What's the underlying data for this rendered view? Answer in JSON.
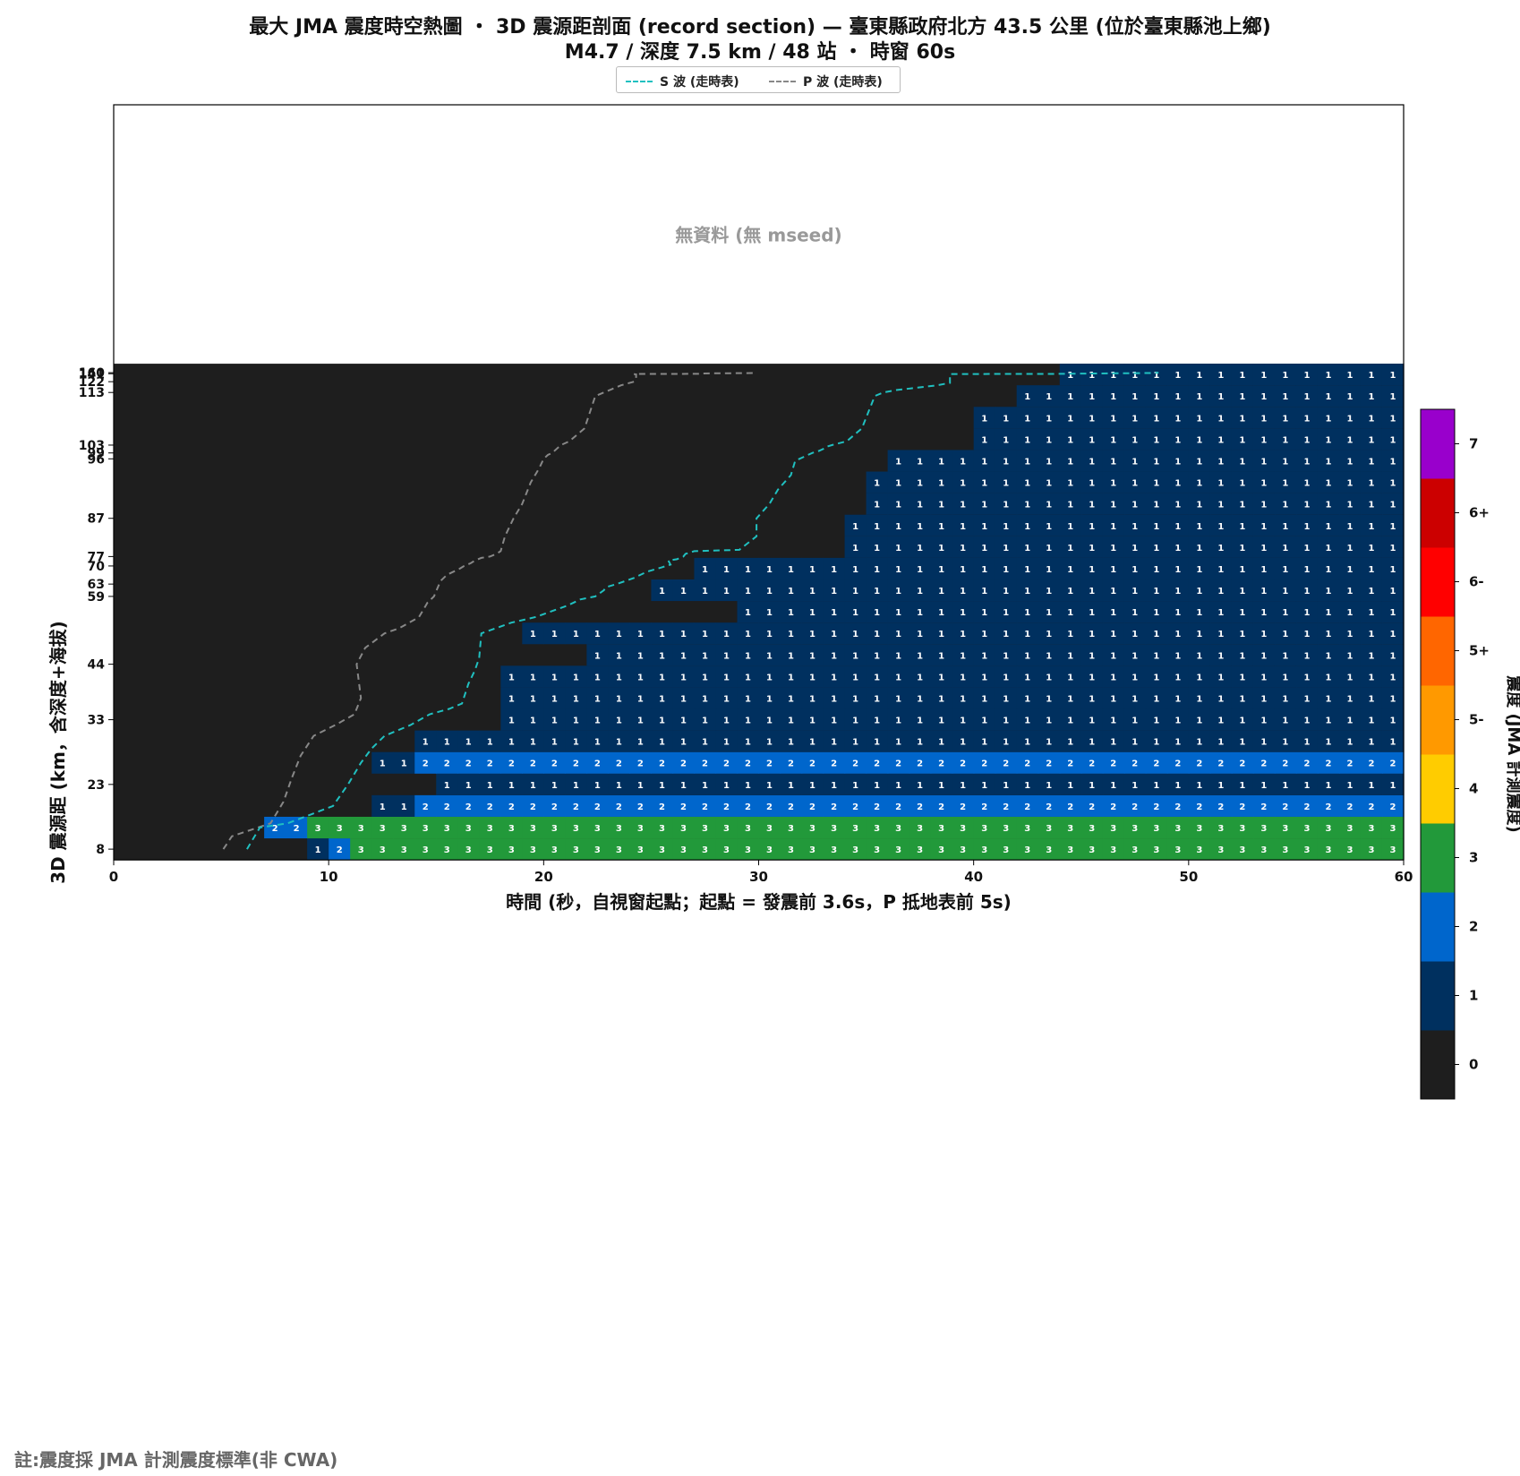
{
  "title_line1": "最大 JMA 震度時空熱圖 ・ 3D 震源距剖面 (record section) — 臺東縣政府北方  43.5  公里 (位於臺東縣池上鄉)",
  "title_line2": "M4.7 / 深度 7.5 km / 48 站 ・ 時窗 60s",
  "legend": {
    "s_wave": "S 波 (走時表)",
    "p_wave": "P 波 (走時表)",
    "s_color": "#20c0c0",
    "p_color": "#888888"
  },
  "no_data_text": "無資料 (無 mseed)",
  "note": "註:震度採 JMA 計測震度標準(非 CWA)",
  "colors": {
    "background": "#1e1e1e",
    "intensity": {
      "0": "#1e1e1e",
      "1": "#00305f",
      "2": "#0066cc",
      "3": "#22993a",
      "4": "#ffcc00",
      "5-": "#ff9900",
      "5+": "#ff6600",
      "6-": "#ff0000",
      "6+": "#cc0000",
      "7": "#9900cc"
    }
  },
  "chart_data": {
    "type": "heatmap",
    "xlabel": "時間 (秒，自視窗起點；起點 = 發震前 3.6s，P 抵地表前 5s)",
    "ylabel": "3D 震源距 (km，含深度+海拔)",
    "xlim": [
      0,
      60
    ],
    "x_ticks": [
      "0",
      "10",
      "20",
      "30",
      "40",
      "50",
      "60"
    ],
    "y_tick_labels": [
      "8",
      "23",
      "33",
      "44",
      "59",
      "63",
      "70",
      "77",
      "87",
      "96",
      "99",
      "103",
      "113",
      "122",
      "141",
      "160"
    ],
    "colorbar": {
      "label": "震度 (JMA 計測震度)",
      "levels": [
        "0",
        "1",
        "2",
        "3",
        "4",
        "5-",
        "5+",
        "6-",
        "6+",
        "7"
      ]
    },
    "rows": [
      {
        "distance": 8,
        "cells": [
          {
            "start": 9,
            "value": 1
          },
          {
            "start": 10,
            "value": 2
          },
          {
            "start": 11,
            "value": 3
          }
        ]
      },
      {
        "distance": 13,
        "cells": [
          {
            "start": 7,
            "value": 2
          },
          {
            "start": 9,
            "value": 3
          }
        ]
      },
      {
        "distance": 18,
        "cells": [
          {
            "start": 12,
            "value": 1
          },
          {
            "start": 14,
            "value": 2
          }
        ]
      },
      {
        "distance": 23,
        "cells": [
          {
            "start": 15,
            "value": 1
          }
        ]
      },
      {
        "distance": 26,
        "cells": [
          {
            "start": 12,
            "value": 1
          },
          {
            "start": 14,
            "value": 2
          }
        ]
      },
      {
        "distance": 29,
        "cells": [
          {
            "start": 14,
            "value": 1
          }
        ]
      },
      {
        "distance": 33,
        "cells": [
          {
            "start": 18,
            "value": 1
          }
        ]
      },
      {
        "distance": 37,
        "cells": [
          {
            "start": 18,
            "value": 1
          }
        ]
      },
      {
        "distance": 40,
        "cells": [
          {
            "start": 18,
            "value": 1
          }
        ]
      },
      {
        "distance": 47,
        "cells": [
          {
            "start": 22,
            "value": 1
          }
        ]
      },
      {
        "distance": 50,
        "cells": [
          {
            "start": 19,
            "value": 1
          }
        ]
      },
      {
        "distance": 54,
        "cells": [
          {
            "start": 29,
            "value": 1
          }
        ]
      },
      {
        "distance": 61,
        "cells": [
          {
            "start": 25,
            "value": 1
          }
        ]
      },
      {
        "distance": 68,
        "cells": [
          {
            "start": 27,
            "value": 1
          }
        ]
      },
      {
        "distance": 84,
        "cells": [
          {
            "start": 34,
            "value": 1
          }
        ]
      },
      {
        "distance": 86,
        "cells": [
          {
            "start": 34,
            "value": 1
          }
        ]
      },
      {
        "distance": 89,
        "cells": [
          {
            "start": 35,
            "value": 1
          }
        ]
      },
      {
        "distance": 92,
        "cells": [
          {
            "start": 35,
            "value": 1
          }
        ]
      },
      {
        "distance": 95,
        "cells": [
          {
            "start": 36,
            "value": 1
          }
        ]
      },
      {
        "distance": 106,
        "cells": [
          {
            "start": 40,
            "value": 1
          }
        ]
      },
      {
        "distance": 108,
        "cells": [
          {
            "start": 40,
            "value": 1
          }
        ]
      },
      {
        "distance": 110,
        "cells": [
          {
            "start": 42,
            "value": 1
          }
        ]
      },
      {
        "distance": 128,
        "cells": [
          {
            "start": 44,
            "value": 1
          }
        ]
      }
    ],
    "no_data_rows": 12,
    "p_wave_curve": [
      [
        5.1,
        8
      ],
      [
        5.5,
        11
      ],
      [
        7.3,
        14
      ],
      [
        7.9,
        19
      ],
      [
        8.3,
        24
      ],
      [
        8.7,
        27
      ],
      [
        9.3,
        30
      ],
      [
        10.3,
        32
      ],
      [
        11.2,
        34
      ],
      [
        11.5,
        37
      ],
      [
        11.3,
        44
      ],
      [
        11.7,
        48
      ],
      [
        12.6,
        50
      ],
      [
        13.3,
        51
      ],
      [
        14.2,
        53
      ],
      [
        14.6,
        57
      ],
      [
        14.9,
        59
      ],
      [
        15.2,
        64
      ],
      [
        15.5,
        66
      ],
      [
        16.1,
        68
      ],
      [
        16.3,
        70
      ],
      [
        16.6,
        72
      ],
      [
        16.8,
        74
      ],
      [
        17.1,
        76
      ],
      [
        17.5,
        77
      ],
      [
        17.8,
        79
      ],
      [
        18.0,
        81
      ],
      [
        18.2,
        85
      ],
      [
        18.6,
        87
      ],
      [
        19.0,
        89
      ],
      [
        19.4,
        92
      ],
      [
        19.8,
        94
      ],
      [
        20.0,
        96
      ],
      [
        20.2,
        98
      ],
      [
        20.4,
        99
      ],
      [
        20.6,
        101
      ],
      [
        20.8,
        103
      ],
      [
        21.2,
        105
      ],
      [
        21.9,
        107
      ],
      [
        22.4,
        110
      ],
      [
        22.8,
        113
      ],
      [
        23.2,
        116
      ],
      [
        23.6,
        119
      ],
      [
        24.2,
        122
      ],
      [
        24.3,
        125
      ],
      [
        24.3,
        130
      ],
      [
        24.2,
        135
      ],
      [
        24.4,
        137
      ],
      [
        25.6,
        138
      ],
      [
        27.0,
        140
      ],
      [
        27.3,
        141
      ],
      [
        27.4,
        145
      ],
      [
        27.9,
        148
      ],
      [
        28.8,
        151
      ],
      [
        29.8,
        153
      ],
      [
        29.9,
        160
      ]
    ],
    "s_wave_curve": [
      [
        6.2,
        8
      ],
      [
        6.8,
        13
      ],
      [
        8.1,
        14
      ],
      [
        10.2,
        18
      ],
      [
        10.9,
        23
      ],
      [
        11.5,
        26
      ],
      [
        12.0,
        28
      ],
      [
        12.6,
        30
      ],
      [
        13.8,
        32
      ],
      [
        14.7,
        34
      ],
      [
        15.6,
        35
      ],
      [
        16.2,
        36
      ],
      [
        16.5,
        39
      ],
      [
        16.8,
        42
      ],
      [
        17.0,
        46
      ],
      [
        17.1,
        50
      ],
      [
        18.5,
        52
      ],
      [
        19.6,
        53
      ],
      [
        20.3,
        54
      ],
      [
        21.1,
        56
      ],
      [
        21.7,
        58
      ],
      [
        22.4,
        59
      ],
      [
        22.8,
        61
      ],
      [
        22.9,
        62
      ],
      [
        23.4,
        63
      ],
      [
        24.2,
        65
      ],
      [
        24.8,
        67
      ],
      [
        25.5,
        69
      ],
      [
        25.9,
        71
      ],
      [
        25.8,
        74
      ],
      [
        26.2,
        75
      ],
      [
        26.5,
        77
      ],
      [
        26.6,
        79
      ],
      [
        27.0,
        81
      ],
      [
        29.1,
        82
      ],
      [
        29.9,
        85
      ],
      [
        29.9,
        87
      ],
      [
        30.5,
        89
      ],
      [
        30.9,
        91
      ],
      [
        31.5,
        93
      ],
      [
        31.7,
        95
      ],
      [
        31.9,
        96
      ],
      [
        32.3,
        98
      ],
      [
        32.5,
        99
      ],
      [
        32.8,
        100
      ],
      [
        33.0,
        101
      ],
      [
        33.1,
        102
      ],
      [
        33.4,
        103
      ],
      [
        34.1,
        105
      ],
      [
        34.8,
        107
      ],
      [
        35.4,
        110
      ],
      [
        35.8,
        113
      ],
      [
        36.4,
        115
      ],
      [
        37.4,
        117
      ],
      [
        38.3,
        119
      ],
      [
        38.9,
        121
      ],
      [
        38.9,
        125
      ],
      [
        38.9,
        130
      ],
      [
        38.9,
        135
      ],
      [
        39.2,
        136
      ],
      [
        43.1,
        138
      ],
      [
        44.4,
        139
      ],
      [
        44.4,
        141
      ],
      [
        45.7,
        145
      ],
      [
        46.5,
        148
      ],
      [
        47.2,
        151
      ],
      [
        48.2,
        153
      ],
      [
        48.6,
        160
      ]
    ]
  }
}
